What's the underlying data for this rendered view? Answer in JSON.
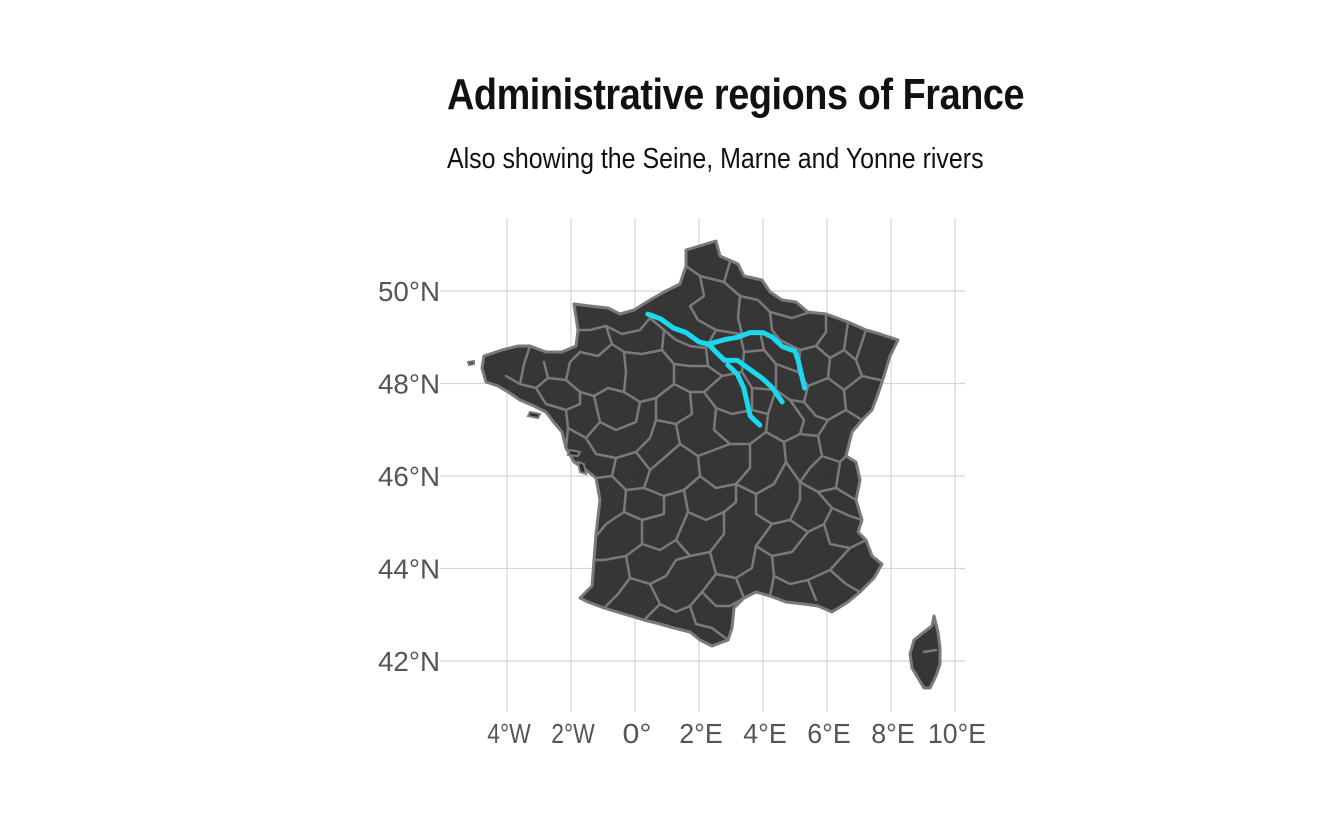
{
  "title": "Administrative regions of France",
  "subtitle": "Also showing the Seine, Marne and Yonne rivers",
  "axes": {
    "lon_ticks": [
      {
        "value": -4,
        "label": "4°W"
      },
      {
        "value": -2,
        "label": "2°W"
      },
      {
        "value": 0,
        "label": "0°"
      },
      {
        "value": 2,
        "label": "2°E"
      },
      {
        "value": 4,
        "label": "4°E"
      },
      {
        "value": 6,
        "label": "6°E"
      },
      {
        "value": 8,
        "label": "8°E"
      },
      {
        "value": 10,
        "label": "10°E"
      }
    ],
    "lat_ticks": [
      {
        "value": 50,
        "label": "50°N"
      },
      {
        "value": 48,
        "label": "48°N"
      },
      {
        "value": 46,
        "label": "46°N"
      },
      {
        "value": 44,
        "label": "44°N"
      },
      {
        "value": 42,
        "label": "42°N"
      }
    ]
  },
  "colors": {
    "land": "#2b2b2b",
    "borders": "#7a7a7a",
    "rivers": "#1ad8f0",
    "grid": "#d4d4d4"
  },
  "rivers": [
    {
      "name": "Seine",
      "coords": [
        [
          0.4,
          49.5
        ],
        [
          0.8,
          49.4
        ],
        [
          1.2,
          49.2
        ],
        [
          1.6,
          49.1
        ],
        [
          2.0,
          48.9
        ],
        [
          2.3,
          48.85
        ],
        [
          2.5,
          48.7
        ],
        [
          2.8,
          48.5
        ],
        [
          3.2,
          48.5
        ],
        [
          3.6,
          48.3
        ],
        [
          4.0,
          48.1
        ],
        [
          4.3,
          47.9
        ],
        [
          4.6,
          47.6
        ]
      ]
    },
    {
      "name": "Marne",
      "coords": [
        [
          2.3,
          48.85
        ],
        [
          2.8,
          48.95
        ],
        [
          3.2,
          49.0
        ],
        [
          3.6,
          49.1
        ],
        [
          4.0,
          49.1
        ],
        [
          4.3,
          49.0
        ],
        [
          4.6,
          48.8
        ],
        [
          5.0,
          48.7
        ],
        [
          5.1,
          48.5
        ],
        [
          5.2,
          48.2
        ],
        [
          5.3,
          47.9
        ]
      ]
    },
    {
      "name": "Yonne",
      "coords": [
        [
          2.9,
          48.4
        ],
        [
          3.2,
          48.2
        ],
        [
          3.4,
          47.9
        ],
        [
          3.5,
          47.6
        ],
        [
          3.6,
          47.3
        ],
        [
          3.9,
          47.1
        ]
      ]
    }
  ]
}
